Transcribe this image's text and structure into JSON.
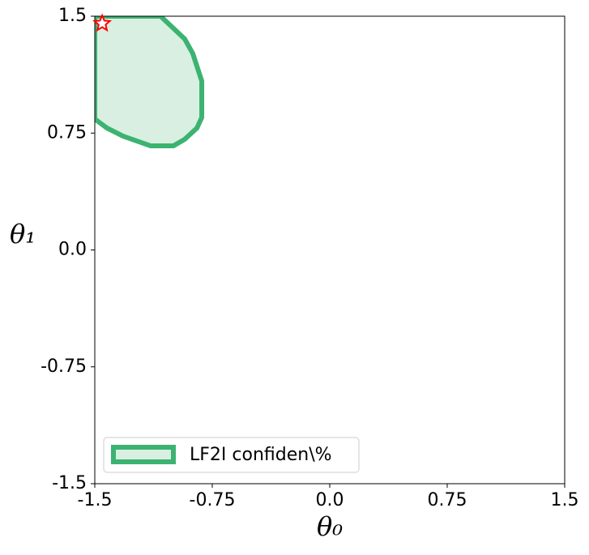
{
  "chart_data": {
    "type": "region",
    "xlabel": "θ₀",
    "ylabel": "θ₁",
    "xlim": [
      -1.5,
      1.5
    ],
    "ylim": [
      -1.5,
      1.5
    ],
    "xticks": [
      -1.5,
      -0.75,
      {
        "value": 0,
        "label": "0.0"
      },
      0.75,
      1.5
    ],
    "yticks": [
      -1.5,
      -0.75,
      {
        "value": 0,
        "label": "0.0"
      },
      0.75,
      1.5
    ],
    "series": [
      {
        "name": "LF2I confiden\\%",
        "color": "#3cb371",
        "fill": "#d8efe2",
        "x": [
          -1.5,
          -1.08,
          -0.926,
          -0.874,
          -0.817,
          -0.817,
          -0.848,
          -0.926,
          -0.998,
          -1.143,
          -1.319,
          -1.422,
          -1.5
        ],
        "y": [
          1.5,
          1.5,
          1.354,
          1.26,
          1.084,
          0.85,
          0.782,
          0.71,
          0.668,
          0.668,
          0.73,
          0.782,
          0.84
        ]
      }
    ],
    "marker": {
      "x": -1.453,
      "y": 1.453,
      "color": "#ff0000"
    },
    "legend": "lower left"
  }
}
